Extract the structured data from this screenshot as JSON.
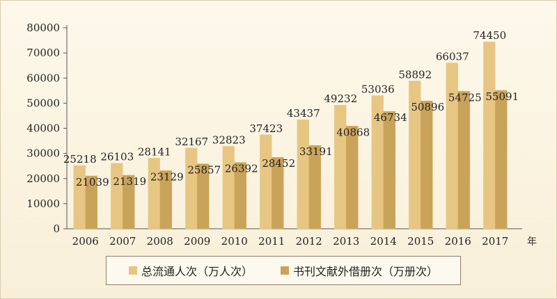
{
  "chart_data": {
    "type": "bar",
    "categories": [
      "2006",
      "2007",
      "2008",
      "2009",
      "2010",
      "2011",
      "2012",
      "2013",
      "2014",
      "2015",
      "2016",
      "2017"
    ],
    "series": [
      {
        "name": "总流通人次（万人次）",
        "color": "#e6c682",
        "values": [
          25218,
          26103,
          28141,
          32167,
          32823,
          37423,
          43437,
          49232,
          53036,
          58892,
          66037,
          74450
        ]
      },
      {
        "name": "书刊文献外借册次（万册次）",
        "color": "#c9a35a",
        "values": [
          21039,
          21319,
          23129,
          25857,
          26392,
          28452,
          33191,
          40868,
          46734,
          50896,
          54725,
          55091
        ]
      }
    ],
    "y_ticks": [
      "0",
      "10000",
      "20000",
      "30000",
      "40000",
      "50000",
      "60000",
      "70000",
      "80000"
    ],
    "ylim": [
      0,
      80000
    ],
    "x_unit": "年",
    "legend_position": "bottom"
  }
}
